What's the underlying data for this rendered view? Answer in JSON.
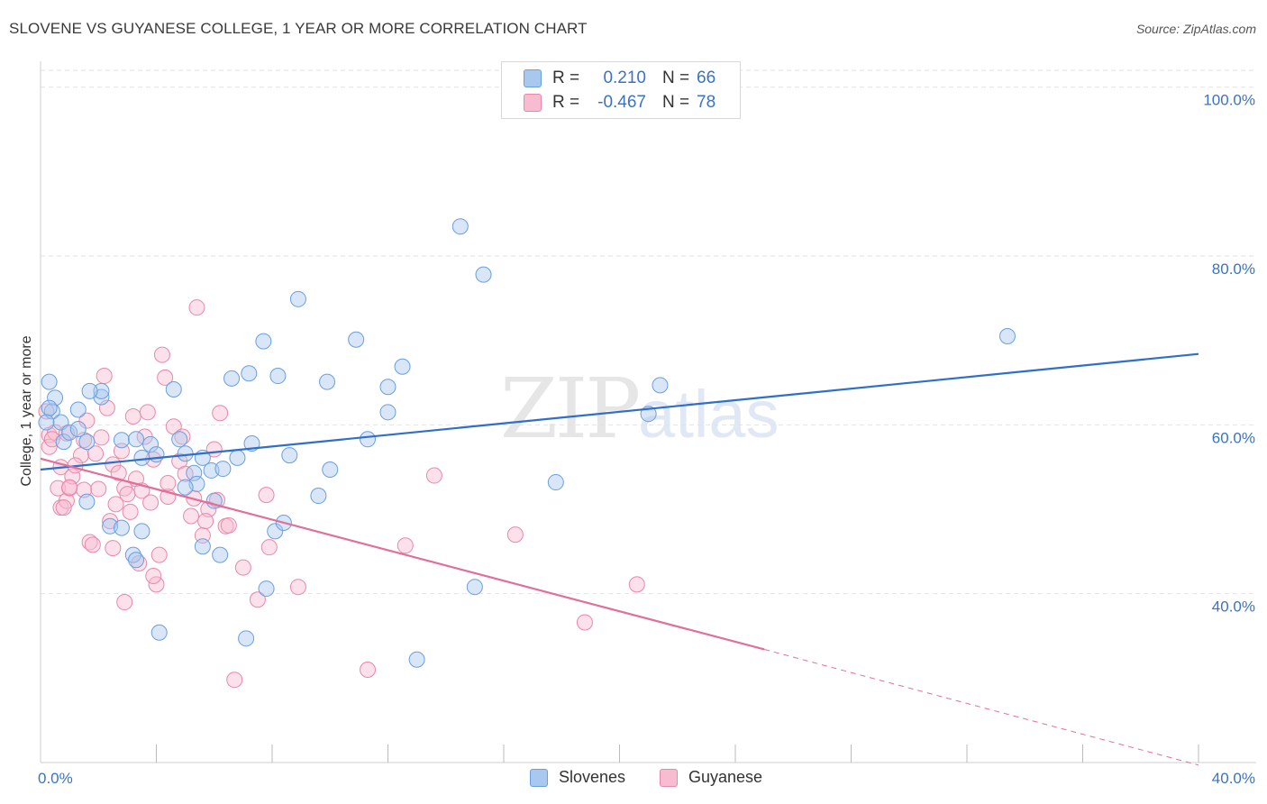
{
  "header": {
    "title": "SLOVENE VS GUYANESE COLLEGE, 1 YEAR OR MORE CORRELATION CHART",
    "source": "Source: ZipAtlas.com"
  },
  "watermark": {
    "zip": "ZIP",
    "atlas": "atlas"
  },
  "legend": {
    "rows": [
      {
        "r_label": "R = ",
        "r_value": "0.210",
        "n_label": "N = ",
        "n_value": "66",
        "color": "#a8c8f0",
        "border": "#6a9fe0"
      },
      {
        "r_label": "R = ",
        "r_value": "-0.467",
        "n_label": "N = ",
        "n_value": "78",
        "color": "#f8bcd0",
        "border": "#e889a8"
      }
    ]
  },
  "bottom_legend": {
    "items": [
      "Slovenes",
      "Guyanese"
    ]
  },
  "colors": {
    "blue_fill": "#a8c8f0",
    "blue_stroke": "#6a9fe0",
    "blue_line": "#2f6fc9",
    "pink_fill": "#f8bcd0",
    "pink_stroke": "#e889a8",
    "pink_line": "#e0709a",
    "tick_label": "#3a73c4",
    "grid": "#e2e2e2"
  },
  "chart_data": {
    "type": "scatter",
    "title": "SLOVENE VS GUYANESE COLLEGE, 1 YEAR OR MORE CORRELATION CHART",
    "xlabel": "",
    "ylabel": "College, 1 year or more",
    "xlim": [
      0,
      40
    ],
    "ylim": [
      20,
      102
    ],
    "x_tick_labels": [
      "0.0%",
      "40.0%"
    ],
    "y_ticks": [
      40,
      60,
      80,
      100
    ],
    "y_tick_labels": [
      "40.0%",
      "60.0%",
      "80.0%",
      "100.0%"
    ],
    "grid": true,
    "legend_position": "top-center",
    "series": [
      {
        "name": "Slovenes",
        "r": 0.21,
        "n": 66,
        "trend": {
          "x0": 0,
          "y0": 54.7,
          "x1": 40,
          "y1": 68.4
        },
        "points": [
          [
            0.3,
            65.1
          ],
          [
            0.5,
            63.2
          ],
          [
            0.4,
            61.6
          ],
          [
            0.7,
            60.3
          ],
          [
            0.8,
            58.0
          ],
          [
            0.3,
            62.0
          ],
          [
            1.0,
            59.1
          ],
          [
            1.3,
            59.5
          ],
          [
            1.6,
            58.0
          ],
          [
            1.3,
            61.8
          ],
          [
            2.1,
            63.3
          ],
          [
            2.1,
            64.0
          ],
          [
            2.8,
            58.2
          ],
          [
            3.3,
            58.3
          ],
          [
            3.5,
            56.1
          ],
          [
            3.8,
            57.7
          ],
          [
            4.0,
            56.5
          ],
          [
            4.6,
            64.2
          ],
          [
            4.8,
            58.3
          ],
          [
            5.0,
            56.6
          ],
          [
            5.3,
            54.3
          ],
          [
            5.4,
            53.0
          ],
          [
            5.6,
            56.1
          ],
          [
            5.9,
            54.6
          ],
          [
            6.0,
            51.0
          ],
          [
            6.3,
            54.8
          ],
          [
            6.6,
            65.5
          ],
          [
            6.8,
            56.1
          ],
          [
            7.2,
            66.1
          ],
          [
            7.3,
            57.8
          ],
          [
            7.7,
            69.9
          ],
          [
            8.2,
            65.8
          ],
          [
            8.6,
            56.4
          ],
          [
            8.9,
            74.9
          ],
          [
            9.6,
            51.6
          ],
          [
            9.9,
            65.1
          ],
          [
            10.0,
            54.7
          ],
          [
            10.9,
            70.1
          ],
          [
            11.3,
            58.3
          ],
          [
            12.0,
            64.5
          ],
          [
            12.0,
            61.5
          ],
          [
            12.5,
            66.9
          ],
          [
            13.0,
            32.2
          ],
          [
            14.5,
            83.5
          ],
          [
            15.0,
            40.8
          ],
          [
            15.3,
            77.8
          ],
          [
            17.8,
            53.2
          ],
          [
            21.0,
            61.3
          ],
          [
            21.4,
            64.7
          ],
          [
            33.4,
            70.5
          ],
          [
            1.6,
            50.9
          ],
          [
            2.4,
            48.0
          ],
          [
            2.8,
            47.8
          ],
          [
            3.5,
            47.4
          ],
          [
            3.2,
            44.6
          ],
          [
            3.3,
            44.0
          ],
          [
            5.0,
            52.6
          ],
          [
            5.6,
            45.6
          ],
          [
            6.2,
            44.6
          ],
          [
            7.1,
            34.7
          ],
          [
            7.8,
            40.6
          ],
          [
            8.1,
            47.4
          ],
          [
            8.4,
            48.4
          ],
          [
            4.1,
            35.4
          ],
          [
            1.7,
            64.0
          ],
          [
            0.2,
            60.3
          ]
        ]
      },
      {
        "name": "Guyanese",
        "r": -0.467,
        "n": 78,
        "trend": {
          "x0": 0,
          "y0": 56.0,
          "x1": 25,
          "y1": 33.4,
          "x_dash_end": 40,
          "y_dash_end": 19.7
        },
        "points": [
          [
            0.2,
            61.6
          ],
          [
            0.3,
            58.8
          ],
          [
            0.3,
            57.4
          ],
          [
            0.5,
            59.1
          ],
          [
            0.7,
            55.0
          ],
          [
            0.6,
            52.5
          ],
          [
            0.7,
            50.2
          ],
          [
            0.9,
            51.0
          ],
          [
            1.0,
            52.5
          ],
          [
            1.1,
            53.9
          ],
          [
            1.4,
            56.4
          ],
          [
            1.5,
            52.3
          ],
          [
            1.6,
            60.5
          ],
          [
            1.9,
            56.6
          ],
          [
            2.0,
            52.4
          ],
          [
            2.1,
            58.5
          ],
          [
            2.2,
            65.8
          ],
          [
            2.3,
            62.0
          ],
          [
            2.5,
            55.3
          ],
          [
            2.6,
            50.6
          ],
          [
            2.8,
            56.9
          ],
          [
            2.9,
            52.5
          ],
          [
            3.1,
            49.7
          ],
          [
            3.2,
            61.0
          ],
          [
            3.3,
            53.6
          ],
          [
            3.5,
            52.2
          ],
          [
            3.6,
            58.6
          ],
          [
            3.7,
            61.5
          ],
          [
            3.8,
            50.8
          ],
          [
            4.0,
            41.1
          ],
          [
            4.1,
            44.6
          ],
          [
            4.2,
            68.3
          ],
          [
            4.3,
            65.6
          ],
          [
            4.4,
            51.5
          ],
          [
            4.6,
            59.8
          ],
          [
            4.8,
            55.7
          ],
          [
            5.0,
            54.2
          ],
          [
            5.2,
            49.2
          ],
          [
            5.4,
            73.9
          ],
          [
            5.6,
            46.9
          ],
          [
            5.8,
            50.0
          ],
          [
            6.0,
            57.1
          ],
          [
            6.2,
            61.4
          ],
          [
            6.4,
            48.0
          ],
          [
            6.7,
            29.8
          ],
          [
            7.0,
            43.1
          ],
          [
            7.5,
            39.3
          ],
          [
            7.8,
            51.7
          ],
          [
            7.9,
            45.5
          ],
          [
            8.9,
            40.8
          ],
          [
            11.3,
            31.0
          ],
          [
            12.6,
            45.7
          ],
          [
            13.6,
            54.0
          ],
          [
            16.4,
            47.0
          ],
          [
            18.8,
            36.6
          ],
          [
            20.6,
            41.1
          ],
          [
            1.7,
            46.1
          ],
          [
            1.8,
            45.8
          ],
          [
            2.5,
            45.4
          ],
          [
            2.9,
            39.0
          ],
          [
            3.4,
            43.6
          ],
          [
            3.9,
            42.1
          ],
          [
            0.4,
            58.3
          ],
          [
            0.9,
            59.0
          ],
          [
            1.2,
            55.2
          ],
          [
            1.5,
            58.2
          ],
          [
            2.7,
            54.3
          ],
          [
            3.0,
            51.8
          ],
          [
            3.9,
            55.9
          ],
          [
            4.4,
            53.1
          ],
          [
            4.9,
            58.6
          ],
          [
            5.3,
            51.3
          ],
          [
            5.7,
            48.6
          ],
          [
            6.1,
            51.1
          ],
          [
            6.5,
            48.1
          ],
          [
            0.8,
            50.2
          ],
          [
            1.0,
            52.6
          ],
          [
            2.4,
            48.6
          ]
        ]
      }
    ]
  }
}
